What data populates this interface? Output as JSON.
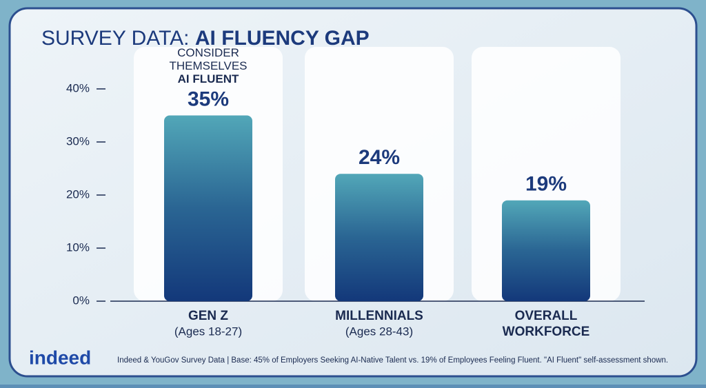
{
  "chart_data": {
    "type": "bar",
    "title": "SURVEY DATA:",
    "title_emphasis": "AI FLUENCY GAP",
    "categories": [
      "GEN Z",
      "MILLENNIALS",
      "OVERALL WORKFORCE"
    ],
    "category_notes": [
      "(Ages 18-27)",
      "(Ages 28-43)"
    ],
    "values": [
      35,
      24,
      19
    ],
    "value_labels": [
      "35%",
      "24%",
      "19%"
    ],
    "annotation": [
      "CONSIDER",
      "THEMSELVES",
      "AI FLUENT"
    ],
    "ylim": [
      0,
      40
    ],
    "yticks": [
      {
        "value": 0,
        "label": "0%"
      },
      {
        "value": 10,
        "label": "10%"
      },
      {
        "value": 20,
        "label": "20%"
      },
      {
        "value": 30,
        "label": "30%"
      },
      {
        "value": 40,
        "label": "40%"
      }
    ],
    "logo": "indeed",
    "source": "Indeed & YouGov Survey Data | Base: 45% of Employers Seeking AI-Native Talent vs. 19% of Employees Feeling Fluent. \"AI Fluent\" self-assessment shown."
  }
}
